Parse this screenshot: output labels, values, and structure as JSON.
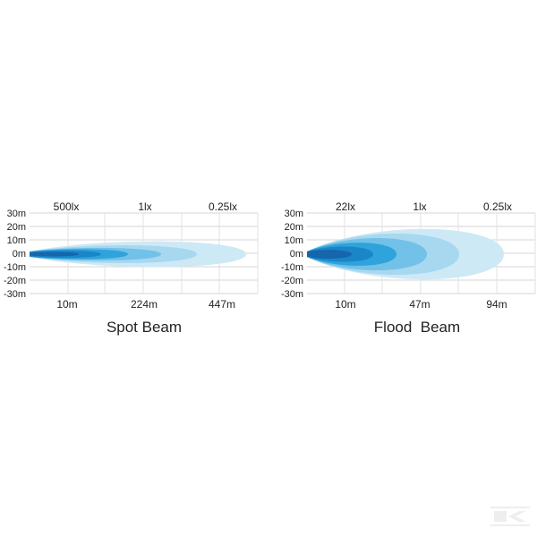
{
  "chart_data": [
    {
      "type": "area",
      "title": "Spot Beam",
      "y_ticks": [
        "30m",
        "20m",
        "10m",
        "0m",
        "-10m",
        "-20m",
        "-30m"
      ],
      "top_labels": [
        "500lx",
        "1lx",
        "0.25lx"
      ],
      "bottom_labels": [
        "10m",
        "224m",
        "447m"
      ],
      "colors": [
        "#cde9f6",
        "#a8d8f0",
        "#72c1e8",
        "#2fa3db",
        "#1a86c8",
        "#1566ad"
      ],
      "grid": true
    },
    {
      "type": "area",
      "title": "Flood  Beam",
      "y_ticks": [
        "30m",
        "20m",
        "10m",
        "0m",
        "-10m",
        "-20m",
        "-30m"
      ],
      "top_labels": [
        "22lx",
        "1lx",
        "0.25lx"
      ],
      "bottom_labels": [
        "10m",
        "47m",
        "94m"
      ],
      "colors": [
        "#cde9f6",
        "#a8d8f0",
        "#72c1e8",
        "#2fa3db",
        "#1a86c8",
        "#1566ad"
      ],
      "grid": true
    }
  ],
  "logo": {
    "text": "K"
  }
}
